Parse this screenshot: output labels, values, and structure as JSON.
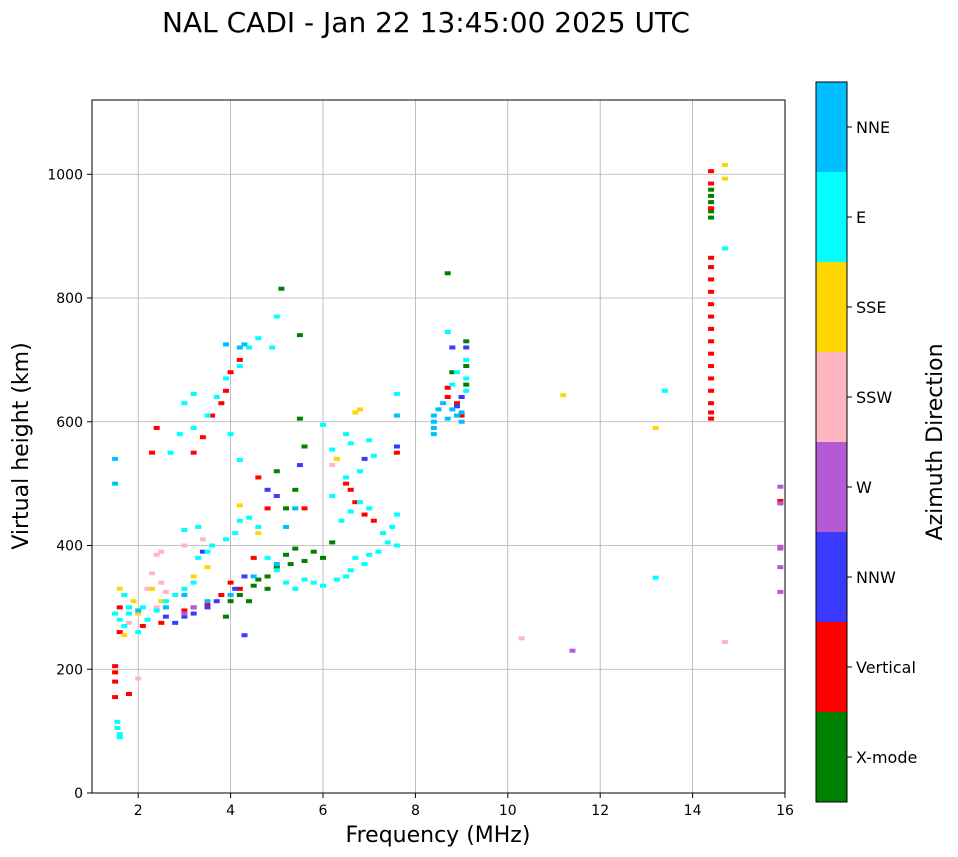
{
  "chart_data": {
    "type": "scatter",
    "title": "NAL CADI - Jan 22 13:45:00 2025 UTC",
    "xlabel": "Frequency (MHz)",
    "ylabel": "Virtual height (km)",
    "xlim": [
      1,
      16
    ],
    "ylim": [
      0,
      1120
    ],
    "xticks": [
      2,
      4,
      6,
      8,
      10,
      12,
      14,
      16
    ],
    "yticks": [
      0,
      200,
      400,
      600,
      800,
      1000
    ],
    "grid": true,
    "colorbar": {
      "label": "Azimuth Direction",
      "categories": [
        {
          "name": "X-mode",
          "color": "#008000"
        },
        {
          "name": "Vertical",
          "color": "#ff0000"
        },
        {
          "name": "NNW",
          "color": "#3a3aff"
        },
        {
          "name": "W",
          "color": "#b45ad2"
        },
        {
          "name": "SSW",
          "color": "#ffb6c1"
        },
        {
          "name": "SSE",
          "color": "#ffd700"
        },
        {
          "name": "E",
          "color": "#00ffff"
        },
        {
          "name": "NNE",
          "color": "#00bfff"
        }
      ]
    },
    "series": [
      {
        "name": "X-mode",
        "points": [
          [
            4.2,
            320
          ],
          [
            4.5,
            335
          ],
          [
            4.8,
            350
          ],
          [
            5.0,
            365
          ],
          [
            5.2,
            385
          ],
          [
            5.4,
            395
          ],
          [
            3.9,
            285
          ],
          [
            4.0,
            310
          ],
          [
            5.6,
            375
          ],
          [
            5.8,
            390
          ],
          [
            6.2,
            405
          ],
          [
            5.0,
            520
          ],
          [
            5.2,
            460
          ],
          [
            5.4,
            490
          ],
          [
            5.5,
            605
          ],
          [
            5.6,
            560
          ],
          [
            5.1,
            815
          ],
          [
            5.5,
            740
          ],
          [
            8.7,
            840
          ],
          [
            9.1,
            730
          ],
          [
            9.1,
            690
          ],
          [
            9.1,
            660
          ],
          [
            9.0,
            640
          ],
          [
            8.8,
            680
          ],
          [
            14.4,
            975
          ],
          [
            14.4,
            965
          ],
          [
            14.4,
            955
          ],
          [
            14.4,
            940
          ],
          [
            14.4,
            930
          ],
          [
            15.9,
            470
          ],
          [
            4.8,
            330
          ],
          [
            5.3,
            370
          ],
          [
            4.6,
            345
          ],
          [
            4.4,
            310
          ],
          [
            6.0,
            380
          ]
        ]
      },
      {
        "name": "Vertical",
        "points": [
          [
            1.5,
            205
          ],
          [
            1.5,
            195
          ],
          [
            1.5,
            180
          ],
          [
            1.5,
            155
          ],
          [
            1.8,
            160
          ],
          [
            1.6,
            260
          ],
          [
            1.6,
            300
          ],
          [
            2.1,
            270
          ],
          [
            2.5,
            275
          ],
          [
            3.0,
            295
          ],
          [
            3.2,
            300
          ],
          [
            3.5,
            305
          ],
          [
            3.8,
            320
          ],
          [
            4.0,
            340
          ],
          [
            4.2,
            330
          ],
          [
            4.5,
            380
          ],
          [
            3.2,
            550
          ],
          [
            3.4,
            575
          ],
          [
            3.6,
            610
          ],
          [
            3.8,
            630
          ],
          [
            3.9,
            650
          ],
          [
            4.0,
            680
          ],
          [
            4.2,
            700
          ],
          [
            2.4,
            590
          ],
          [
            2.3,
            550
          ],
          [
            4.6,
            510
          ],
          [
            4.8,
            460
          ],
          [
            5.6,
            460
          ],
          [
            6.5,
            500
          ],
          [
            6.6,
            490
          ],
          [
            6.7,
            470
          ],
          [
            6.9,
            450
          ],
          [
            7.1,
            440
          ],
          [
            7.6,
            550
          ],
          [
            8.7,
            655
          ],
          [
            8.7,
            640
          ],
          [
            8.9,
            630
          ],
          [
            9.0,
            610
          ],
          [
            14.4,
            1005
          ],
          [
            14.4,
            985
          ],
          [
            14.4,
            945
          ],
          [
            14.4,
            865
          ],
          [
            14.4,
            850
          ],
          [
            14.4,
            830
          ],
          [
            14.4,
            810
          ],
          [
            14.4,
            790
          ],
          [
            14.4,
            770
          ],
          [
            14.4,
            750
          ],
          [
            14.4,
            730
          ],
          [
            14.4,
            710
          ],
          [
            14.4,
            690
          ],
          [
            14.4,
            670
          ],
          [
            14.4,
            650
          ],
          [
            14.4,
            630
          ],
          [
            14.4,
            615
          ],
          [
            14.4,
            605
          ],
          [
            15.9,
            472
          ]
        ]
      },
      {
        "name": "NNW",
        "points": [
          [
            2.8,
            275
          ],
          [
            3.0,
            285
          ],
          [
            3.2,
            290
          ],
          [
            3.5,
            300
          ],
          [
            3.7,
            310
          ],
          [
            4.1,
            330
          ],
          [
            4.3,
            350
          ],
          [
            4.3,
            255
          ],
          [
            4.8,
            490
          ],
          [
            5.0,
            480
          ],
          [
            5.5,
            530
          ],
          [
            6.9,
            540
          ],
          [
            7.6,
            560
          ],
          [
            8.8,
            720
          ],
          [
            9.1,
            720
          ],
          [
            9.0,
            640
          ],
          [
            8.9,
            625
          ],
          [
            3.4,
            390
          ],
          [
            2.6,
            285
          ]
        ]
      },
      {
        "name": "W",
        "points": [
          [
            3.0,
            290
          ],
          [
            3.2,
            300
          ],
          [
            11.4,
            230
          ],
          [
            15.9,
            495
          ],
          [
            15.9,
            468
          ],
          [
            15.9,
            398
          ],
          [
            15.9,
            395
          ],
          [
            15.9,
            365
          ],
          [
            15.9,
            325
          ]
        ]
      },
      {
        "name": "SSW",
        "points": [
          [
            2.4,
            385
          ],
          [
            2.5,
            390
          ],
          [
            2.5,
            340
          ],
          [
            2.6,
            325
          ],
          [
            2.4,
            300
          ],
          [
            2.3,
            355
          ],
          [
            3.0,
            400
          ],
          [
            3.4,
            410
          ],
          [
            2.2,
            330
          ],
          [
            10.3,
            250
          ],
          [
            14.7,
            244
          ],
          [
            6.3,
            540
          ],
          [
            6.2,
            530
          ],
          [
            2.0,
            185
          ],
          [
            1.8,
            275
          ]
        ]
      },
      {
        "name": "SSE",
        "points": [
          [
            1.7,
            320
          ],
          [
            1.8,
            300
          ],
          [
            1.9,
            310
          ],
          [
            2.0,
            290
          ],
          [
            2.3,
            330
          ],
          [
            2.5,
            310
          ],
          [
            3.2,
            350
          ],
          [
            3.5,
            365
          ],
          [
            4.2,
            465
          ],
          [
            4.6,
            420
          ],
          [
            6.7,
            615
          ],
          [
            6.8,
            620
          ],
          [
            6.3,
            540
          ],
          [
            11.2,
            643
          ],
          [
            13.2,
            590
          ],
          [
            14.7,
            1015
          ],
          [
            14.7,
            993
          ],
          [
            2.6,
            300
          ],
          [
            1.6,
            330
          ],
          [
            1.7,
            255
          ]
        ]
      },
      {
        "name": "E",
        "points": [
          [
            1.55,
            115
          ],
          [
            1.55,
            105
          ],
          [
            1.6,
            95
          ],
          [
            1.6,
            90
          ],
          [
            1.5,
            290
          ],
          [
            1.6,
            280
          ],
          [
            1.7,
            270
          ],
          [
            1.8,
            300
          ],
          [
            2.0,
            260
          ],
          [
            2.2,
            280
          ],
          [
            2.4,
            295
          ],
          [
            2.6,
            310
          ],
          [
            2.8,
            320
          ],
          [
            3.0,
            330
          ],
          [
            3.2,
            340
          ],
          [
            3.3,
            380
          ],
          [
            3.5,
            390
          ],
          [
            3.6,
            400
          ],
          [
            3.9,
            410
          ],
          [
            4.1,
            420
          ],
          [
            4.2,
            440
          ],
          [
            4.4,
            445
          ],
          [
            4.6,
            430
          ],
          [
            4.8,
            380
          ],
          [
            5.0,
            360
          ],
          [
            5.2,
            340
          ],
          [
            5.4,
            330
          ],
          [
            5.6,
            345
          ],
          [
            5.8,
            340
          ],
          [
            6.0,
            335
          ],
          [
            6.3,
            345
          ],
          [
            6.5,
            350
          ],
          [
            6.6,
            360
          ],
          [
            6.7,
            380
          ],
          [
            6.9,
            370
          ],
          [
            7.0,
            385
          ],
          [
            7.2,
            390
          ],
          [
            7.4,
            405
          ],
          [
            7.5,
            430
          ],
          [
            7.6,
            450
          ],
          [
            7.6,
            400
          ],
          [
            7.3,
            420
          ],
          [
            7.0,
            460
          ],
          [
            6.8,
            470
          ],
          [
            6.6,
            455
          ],
          [
            6.4,
            440
          ],
          [
            6.2,
            480
          ],
          [
            6.5,
            510
          ],
          [
            6.8,
            520
          ],
          [
            7.1,
            545
          ],
          [
            7.0,
            570
          ],
          [
            6.6,
            565
          ],
          [
            6.2,
            555
          ],
          [
            3.0,
            425
          ],
          [
            3.3,
            430
          ],
          [
            4.2,
            538
          ],
          [
            3.2,
            590
          ],
          [
            3.5,
            610
          ],
          [
            3.7,
            640
          ],
          [
            3.9,
            670
          ],
          [
            4.2,
            690
          ],
          [
            4.4,
            720
          ],
          [
            4.6,
            735
          ],
          [
            4.9,
            720
          ],
          [
            4.0,
            580
          ],
          [
            3.0,
            630
          ],
          [
            3.2,
            645
          ],
          [
            6.0,
            595
          ],
          [
            6.5,
            580
          ],
          [
            9.1,
            700
          ],
          [
            9.1,
            670
          ],
          [
            9.1,
            650
          ],
          [
            8.9,
            680
          ],
          [
            8.8,
            660
          ],
          [
            8.7,
            745
          ],
          [
            14.7,
            880
          ],
          [
            13.4,
            650
          ],
          [
            13.2,
            348
          ],
          [
            7.6,
            645
          ],
          [
            5.0,
            770
          ],
          [
            2.9,
            580
          ],
          [
            2.7,
            550
          ],
          [
            1.7,
            320
          ],
          [
            1.8,
            290
          ],
          [
            2.1,
            300
          ]
        ]
      },
      {
        "name": "NNE",
        "points": [
          [
            1.5,
            500
          ],
          [
            1.5,
            540
          ],
          [
            3.9,
            725
          ],
          [
            4.2,
            720
          ],
          [
            4.3,
            725
          ],
          [
            8.4,
            610
          ],
          [
            8.4,
            600
          ],
          [
            8.4,
            590
          ],
          [
            8.4,
            580
          ],
          [
            8.5,
            620
          ],
          [
            8.6,
            630
          ],
          [
            8.7,
            605
          ],
          [
            8.8,
            620
          ],
          [
            8.9,
            610
          ],
          [
            9.0,
            600
          ],
          [
            9.0,
            615
          ],
          [
            3.0,
            320
          ],
          [
            3.5,
            310
          ],
          [
            4.0,
            320
          ],
          [
            4.5,
            350
          ],
          [
            5.0,
            370
          ],
          [
            5.4,
            460
          ],
          [
            5.2,
            430
          ],
          [
            7.6,
            610
          ],
          [
            2.0,
            295
          ],
          [
            2.6,
            300
          ]
        ]
      }
    ]
  }
}
